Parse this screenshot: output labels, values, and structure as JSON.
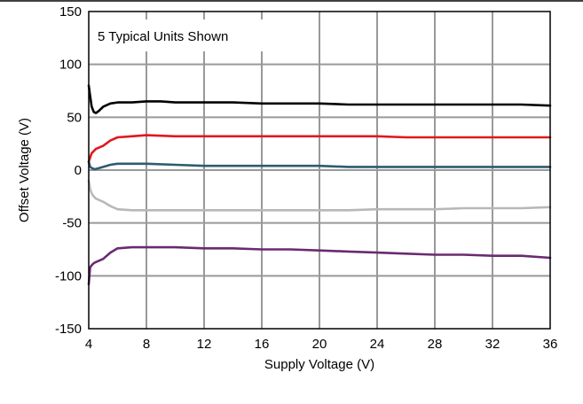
{
  "chart_data": {
    "type": "line",
    "title": "",
    "annotation": "5 Typical Units Shown",
    "xlabel": "Supply Voltage (V)",
    "ylabel": "Offset Voltage (V)",
    "xlim": [
      4,
      36
    ],
    "ylim": [
      -150,
      150
    ],
    "xticks": [
      4,
      8,
      12,
      16,
      20,
      24,
      28,
      32,
      36
    ],
    "yticks": [
      150,
      100,
      50,
      0,
      -50,
      -100,
      -150
    ],
    "grid": true,
    "series": [
      {
        "color": "#000000",
        "x": [
          4.0,
          4.1,
          4.2,
          4.35,
          4.5,
          4.7,
          5.0,
          5.5,
          6,
          7,
          8,
          9,
          10,
          12,
          14,
          16,
          18,
          20,
          22,
          24,
          26,
          28,
          30,
          32,
          34,
          36
        ],
        "y": [
          80,
          70,
          60,
          55,
          54,
          56,
          60,
          63,
          64,
          64,
          65,
          65,
          64,
          64,
          64,
          63,
          63,
          63,
          62,
          62,
          62,
          62,
          62,
          62,
          62,
          61
        ]
      },
      {
        "color": "#e0191d",
        "x": [
          4.0,
          4.1,
          4.2,
          4.35,
          4.5,
          5.0,
          5.5,
          6,
          7,
          8,
          10,
          12,
          14,
          16,
          18,
          20,
          22,
          24,
          26,
          28,
          30,
          32,
          34,
          36
        ],
        "y": [
          8,
          12,
          16,
          18,
          20,
          23,
          28,
          31,
          32,
          33,
          32,
          32,
          32,
          32,
          32,
          32,
          32,
          32,
          31,
          31,
          31,
          31,
          31,
          31
        ]
      },
      {
        "color": "#2e5b70",
        "x": [
          4.0,
          4.1,
          4.2,
          4.35,
          4.5,
          5.0,
          5.5,
          6,
          7,
          8,
          10,
          12,
          14,
          16,
          18,
          20,
          22,
          24,
          26,
          28,
          30,
          32,
          34,
          36
        ],
        "y": [
          8,
          3,
          2,
          1,
          1,
          3,
          5,
          6,
          6,
          6,
          5,
          4,
          4,
          4,
          4,
          4,
          3,
          3,
          3,
          3,
          3,
          3,
          3,
          3
        ]
      },
      {
        "color": "#b8b8b8",
        "x": [
          4.0,
          4.1,
          4.2,
          4.35,
          4.5,
          5.0,
          5.5,
          6,
          7,
          8,
          10,
          12,
          14,
          16,
          18,
          20,
          22,
          24,
          26,
          28,
          30,
          32,
          34,
          36
        ],
        "y": [
          -10,
          -18,
          -22,
          -25,
          -27,
          -30,
          -34,
          -37,
          -38,
          -38,
          -38,
          -38,
          -38,
          -38,
          -38,
          -38,
          -38,
          -37,
          -37,
          -37,
          -36,
          -36,
          -36,
          -35
        ]
      },
      {
        "color": "#6a2a70",
        "x": [
          4.0,
          4.05,
          4.1,
          4.2,
          4.35,
          4.5,
          5.0,
          5.5,
          6,
          7,
          8,
          9,
          10,
          12,
          14,
          16,
          18,
          20,
          22,
          24,
          26,
          28,
          30,
          32,
          34,
          36
        ],
        "y": [
          -108,
          -100,
          -92,
          -90,
          -88,
          -87,
          -84,
          -78,
          -74,
          -73,
          -73,
          -73,
          -73,
          -74,
          -74,
          -75,
          -75,
          -76,
          -77,
          -78,
          -79,
          -80,
          -80,
          -81,
          -81,
          -83
        ]
      }
    ]
  }
}
